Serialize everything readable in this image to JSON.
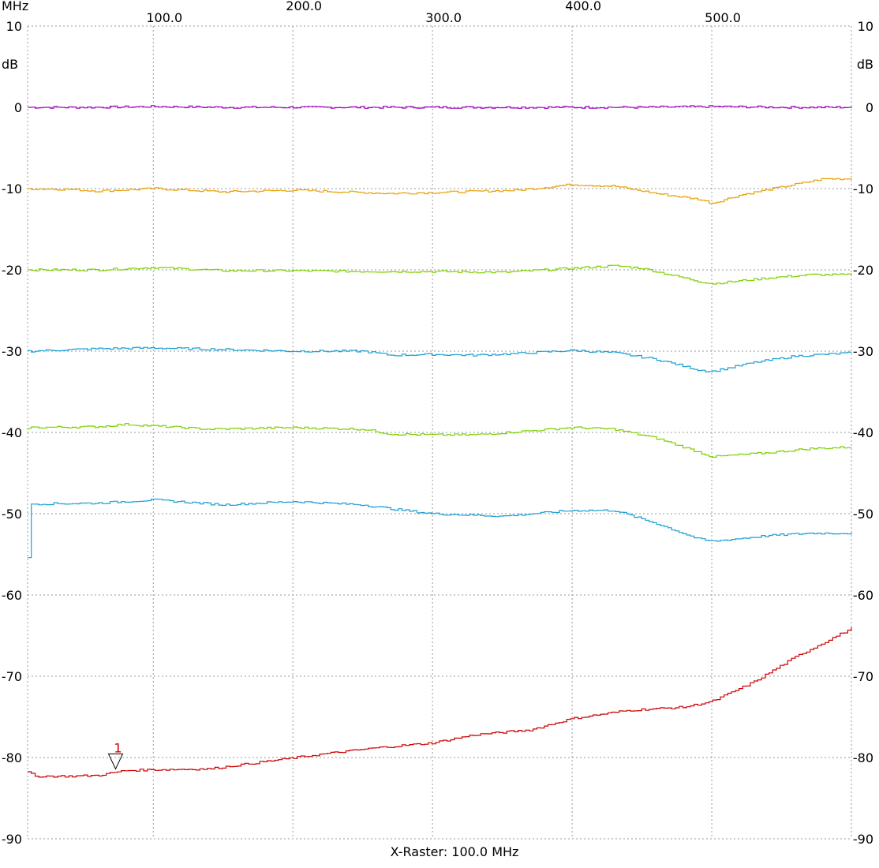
{
  "chart_data": {
    "type": "line",
    "x_unit": "MHz",
    "y_unit": "dB",
    "xlim": [
      10,
      600
    ],
    "ylim": [
      -90,
      10
    ],
    "x_ticks": [
      100,
      200,
      300,
      400,
      500
    ],
    "x_tick_labels": [
      "100.0",
      "200.0",
      "300.0",
      "400.0",
      "500.0"
    ],
    "y_ticks": [
      10,
      0,
      -10,
      -20,
      -30,
      -40,
      -50,
      -60,
      -70,
      -80,
      -90
    ],
    "y_tick_labels": [
      "10",
      "0",
      "-10",
      "-20",
      "-30",
      "-40",
      "-50",
      "-60",
      "-70",
      "-80",
      "-90"
    ],
    "grid": true,
    "x_raster_label": "X-Raster: 100.0 MHz",
    "series": [
      {
        "color": "#a000c0",
        "x": [
          10,
          60,
          100,
          150,
          200,
          250,
          300,
          350,
          400,
          450,
          500,
          550,
          600
        ],
        "y": [
          0,
          0,
          0.1,
          0,
          0,
          0,
          0,
          0,
          0,
          0,
          0.1,
          0,
          0
        ]
      },
      {
        "color": "#e8a000",
        "x": [
          10,
          40,
          60,
          100,
          150,
          200,
          270,
          320,
          360,
          400,
          430,
          460,
          490,
          500,
          520,
          550,
          580,
          600
        ],
        "y": [
          -10,
          -10.1,
          -10.3,
          -10,
          -10.4,
          -10.2,
          -10.6,
          -10.4,
          -10.2,
          -9.5,
          -9.7,
          -10.6,
          -11.3,
          -11.8,
          -10.8,
          -9.8,
          -8.8,
          -8.8
        ]
      },
      {
        "color": "#7ed000",
        "x": [
          10,
          60,
          100,
          150,
          200,
          250,
          300,
          350,
          400,
          430,
          450,
          470,
          490,
          500,
          540,
          570,
          600
        ],
        "y": [
          -20,
          -20,
          -19.7,
          -20.1,
          -20.1,
          -20.2,
          -20.2,
          -20.3,
          -19.8,
          -19.5,
          -19.8,
          -20.6,
          -21.4,
          -21.7,
          -21,
          -20.6,
          -20.6
        ]
      },
      {
        "color": "#1a9fd4",
        "x": [
          10,
          60,
          100,
          150,
          200,
          250,
          270,
          300,
          330,
          360,
          400,
          430,
          460,
          490,
          500,
          530,
          560,
          600
        ],
        "y": [
          -30,
          -29.7,
          -29.6,
          -29.8,
          -30,
          -30,
          -30.5,
          -30.4,
          -30.5,
          -30.3,
          -29.9,
          -30.2,
          -31,
          -32.3,
          -32.5,
          -31.4,
          -30.6,
          -30.2
        ]
      },
      {
        "color": "#7ed000",
        "x": [
          10,
          60,
          80,
          100,
          140,
          200,
          250,
          270,
          300,
          330,
          370,
          400,
          430,
          460,
          490,
          500,
          540,
          570,
          600
        ],
        "y": [
          -39.4,
          -39.3,
          -39,
          -39.2,
          -39.6,
          -39.4,
          -39.6,
          -40.2,
          -40.3,
          -40.3,
          -39.8,
          -39.4,
          -39.6,
          -40.7,
          -42.4,
          -43,
          -42.5,
          -42,
          -41.8
        ]
      },
      {
        "color": "#1a9fd4",
        "x": [
          10,
          12,
          60,
          100,
          150,
          200,
          250,
          270,
          300,
          350,
          400,
          430,
          460,
          490,
          500,
          540,
          570,
          600
        ],
        "y": [
          -55.5,
          -48.8,
          -48.7,
          -48.3,
          -48.9,
          -48.5,
          -48.9,
          -49.4,
          -50,
          -50.3,
          -49.6,
          -49.6,
          -51.2,
          -53.1,
          -53.4,
          -52.7,
          -52.4,
          -52.4
        ]
      },
      {
        "color": "#cc0000",
        "x": [
          10,
          15,
          40,
          60,
          80,
          100,
          140,
          180,
          220,
          260,
          300,
          330,
          370,
          400,
          440,
          480,
          500,
          530,
          560,
          600
        ],
        "y": [
          -81.8,
          -82.3,
          -82.3,
          -82.2,
          -81.6,
          -81.5,
          -81.4,
          -80.5,
          -79.6,
          -78.8,
          -78.2,
          -77.2,
          -76.6,
          -75.2,
          -74.2,
          -73.8,
          -73.1,
          -70.7,
          -67.6,
          -64.1
        ]
      }
    ],
    "markers": [
      {
        "label": "1",
        "x": 73,
        "y": -81.4,
        "color": "#cc0000"
      }
    ]
  }
}
